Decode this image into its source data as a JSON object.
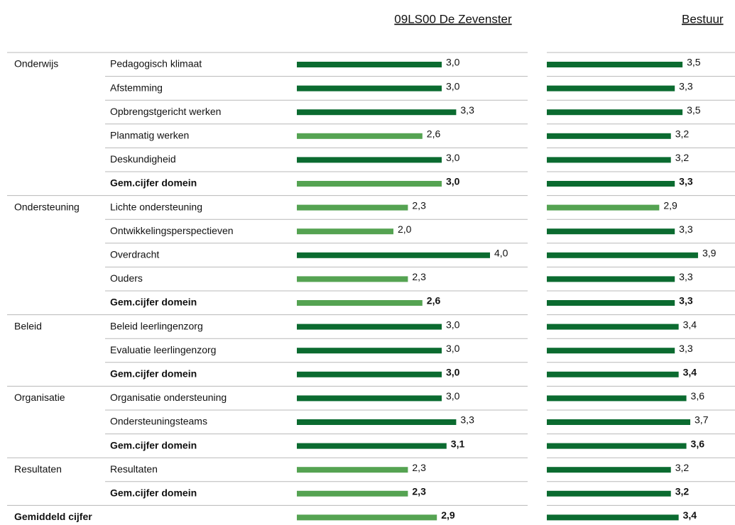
{
  "columns": [
    "09LS00 De Zevenster",
    "Bestuur"
  ],
  "xlim": [
    0,
    5
  ],
  "groups": [
    {
      "name": "Onderwijs",
      "rows": [
        {
          "label": "Pedagogisch klimaat",
          "values": [
            3.0,
            3.5
          ],
          "value_labels": [
            "3,0",
            "3,5"
          ],
          "colors": [
            "#0b6b30",
            "#0b6b30"
          ]
        },
        {
          "label": "Afstemming",
          "values": [
            3.0,
            3.3
          ],
          "value_labels": [
            "3,0",
            "3,3"
          ],
          "colors": [
            "#0b6b30",
            "#0b6b30"
          ]
        },
        {
          "label": "Opbrengstgericht werken",
          "values": [
            3.3,
            3.5
          ],
          "value_labels": [
            "3,3",
            "3,5"
          ],
          "colors": [
            "#0b6b30",
            "#0b6b30"
          ]
        },
        {
          "label": "Planmatig werken",
          "values": [
            2.6,
            3.2
          ],
          "value_labels": [
            "2,6",
            "3,2"
          ],
          "colors": [
            "#55a352",
            "#0b6b30"
          ]
        },
        {
          "label": "Deskundigheid",
          "values": [
            3.0,
            3.2
          ],
          "value_labels": [
            "3,0",
            "3,2"
          ],
          "colors": [
            "#0b6b30",
            "#0b6b30"
          ]
        },
        {
          "label": "Gem.cijfer domein",
          "bold": true,
          "values": [
            3.0,
            3.3
          ],
          "value_labels": [
            "3,0",
            "3,3"
          ],
          "colors": [
            "#55a352",
            "#0b6b30"
          ]
        }
      ]
    },
    {
      "name": "Ondersteuning",
      "rows": [
        {
          "label": "Lichte ondersteuning",
          "values": [
            2.3,
            2.9
          ],
          "value_labels": [
            "2,3",
            "2,9"
          ],
          "colors": [
            "#55a352",
            "#55a352"
          ]
        },
        {
          "label": "Ontwikkelingsperspectieven",
          "values": [
            2.0,
            3.3
          ],
          "value_labels": [
            "2,0",
            "3,3"
          ],
          "colors": [
            "#55a352",
            "#0b6b30"
          ]
        },
        {
          "label": "Overdracht",
          "values": [
            4.0,
            3.9
          ],
          "value_labels": [
            "4,0",
            "3,9"
          ],
          "colors": [
            "#0b6b30",
            "#0b6b30"
          ]
        },
        {
          "label": "Ouders",
          "values": [
            2.3,
            3.3
          ],
          "value_labels": [
            "2,3",
            "3,3"
          ],
          "colors": [
            "#55a352",
            "#0b6b30"
          ]
        },
        {
          "label": "Gem.cijfer domein",
          "bold": true,
          "values": [
            2.6,
            3.3
          ],
          "value_labels": [
            "2,6",
            "3,3"
          ],
          "colors": [
            "#55a352",
            "#0b6b30"
          ]
        }
      ]
    },
    {
      "name": "Beleid",
      "rows": [
        {
          "label": "Beleid leerlingenzorg",
          "values": [
            3.0,
            3.4
          ],
          "value_labels": [
            "3,0",
            "3,4"
          ],
          "colors": [
            "#0b6b30",
            "#0b6b30"
          ]
        },
        {
          "label": "Evaluatie leerlingenzorg",
          "values": [
            3.0,
            3.3
          ],
          "value_labels": [
            "3,0",
            "3,3"
          ],
          "colors": [
            "#0b6b30",
            "#0b6b30"
          ]
        },
        {
          "label": "Gem.cijfer domein",
          "bold": true,
          "values": [
            3.0,
            3.4
          ],
          "value_labels": [
            "3,0",
            "3,4"
          ],
          "colors": [
            "#0b6b30",
            "#0b6b30"
          ]
        }
      ]
    },
    {
      "name": "Organisatie",
      "rows": [
        {
          "label": "Organisatie ondersteuning",
          "values": [
            3.0,
            3.6
          ],
          "value_labels": [
            "3,0",
            "3,6"
          ],
          "colors": [
            "#0b6b30",
            "#0b6b30"
          ]
        },
        {
          "label": "Ondersteuningsteams",
          "values": [
            3.3,
            3.7
          ],
          "value_labels": [
            "3,3",
            "3,7"
          ],
          "colors": [
            "#0b6b30",
            "#0b6b30"
          ]
        },
        {
          "label": "Gem.cijfer domein",
          "bold": true,
          "values": [
            3.1,
            3.6
          ],
          "value_labels": [
            "3,1",
            "3,6"
          ],
          "colors": [
            "#0b6b30",
            "#0b6b30"
          ]
        }
      ]
    },
    {
      "name": "Resultaten",
      "rows": [
        {
          "label": "Resultaten",
          "values": [
            2.3,
            3.2
          ],
          "value_labels": [
            "2,3",
            "3,2"
          ],
          "colors": [
            "#55a352",
            "#0b6b30"
          ]
        },
        {
          "label": "Gem.cijfer domein",
          "bold": true,
          "values": [
            2.3,
            3.2
          ],
          "value_labels": [
            "2,3",
            "3,2"
          ],
          "colors": [
            "#55a352",
            "#0b6b30"
          ]
        }
      ]
    }
  ],
  "total": {
    "label": "Gemiddeld cijfer",
    "bold": true,
    "values": [
      2.9,
      3.4
    ],
    "value_labels": [
      "2,9",
      "3,4"
    ],
    "colors": [
      "#55a352",
      "#0b6b30"
    ]
  }
}
